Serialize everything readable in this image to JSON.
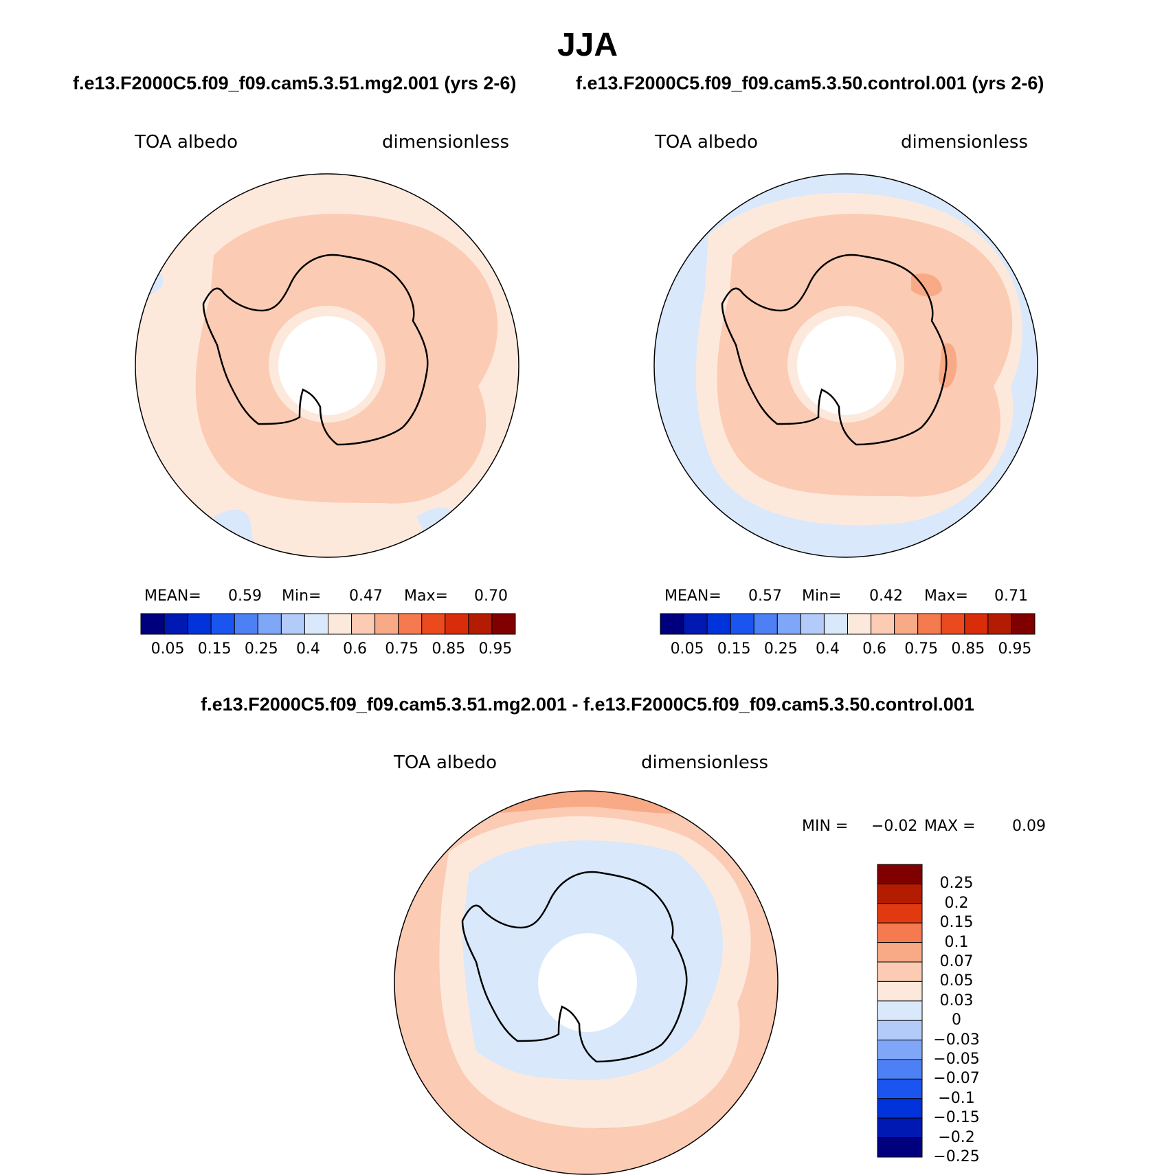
{
  "title": "JJA",
  "panels": [
    {
      "case_title": "f.e13.F2000C5.f09_f09.cam5.3.51.mg2.001 (yrs 2-6)",
      "variable": "TOA albedo",
      "units": "dimensionless",
      "stats": {
        "mean_label": "MEAN=",
        "mean": "0.59",
        "min_label": "Min=",
        "min": "0.47",
        "max_label": "Max=",
        "max": "0.70"
      }
    },
    {
      "case_title": "f.e13.F2000C5.f09_f09.cam5.3.50.control.001 (yrs 2-6)",
      "variable": "TOA albedo",
      "units": "dimensionless",
      "stats": {
        "mean_label": "MEAN=",
        "mean": "0.57",
        "min_label": "Min=",
        "min": "0.42",
        "max_label": "Max=",
        "max": "0.71"
      }
    },
    {
      "case_title": "f.e13.F2000C5.f09_f09.cam5.3.51.mg2.001 - f.e13.F2000C5.f09_f09.cam5.3.50.control.001",
      "variable": "TOA albedo",
      "units": "dimensionless",
      "stats": {
        "min_label": "MIN =",
        "min": "−0.02",
        "max_label": "MAX =",
        "max": "0.09"
      }
    }
  ],
  "colorbar_abs": {
    "colors": [
      "#00007f",
      "#0019b3",
      "#0033d9",
      "#1a55f0",
      "#4d7ff5",
      "#80a6f7",
      "#b3cbf9",
      "#d9e8fb",
      "#fde9dc",
      "#fbcbb4",
      "#f8a986",
      "#f57a4f",
      "#ea4a1e",
      "#d92c0a",
      "#b31c00",
      "#800000"
    ],
    "tick_labels": [
      "0.05",
      "0.15",
      "0.25",
      "0.4",
      "0.6",
      "0.75",
      "0.85",
      "0.95"
    ]
  },
  "colorbar_diff": {
    "colors": [
      "#800000",
      "#b31c00",
      "#e23a10",
      "#f57a4f",
      "#f8a986",
      "#fbcbb4",
      "#fde9dc",
      "#d9e8fb",
      "#b3cbf9",
      "#80a6f7",
      "#4d7ff5",
      "#1a55f0",
      "#0033d9",
      "#0019b3",
      "#00007f"
    ],
    "tick_labels": [
      "0.25",
      "0.2",
      "0.15",
      "0.1",
      "0.07",
      "0.05",
      "0.03",
      "0",
      "−0.03",
      "−0.05",
      "−0.07",
      "−0.1",
      "−0.15",
      "−0.2",
      "−0.25"
    ]
  },
  "map_colors": {
    "pale_orange": "#fde9dc",
    "light_salmon": "#fbcbb4",
    "salmon": "#f8a986",
    "orange": "#f57a4f",
    "pale_blue": "#d9e8fb",
    "light_blue": "#b3cbf9",
    "pole_hole": "#ffffff",
    "coastline": "#000000"
  }
}
